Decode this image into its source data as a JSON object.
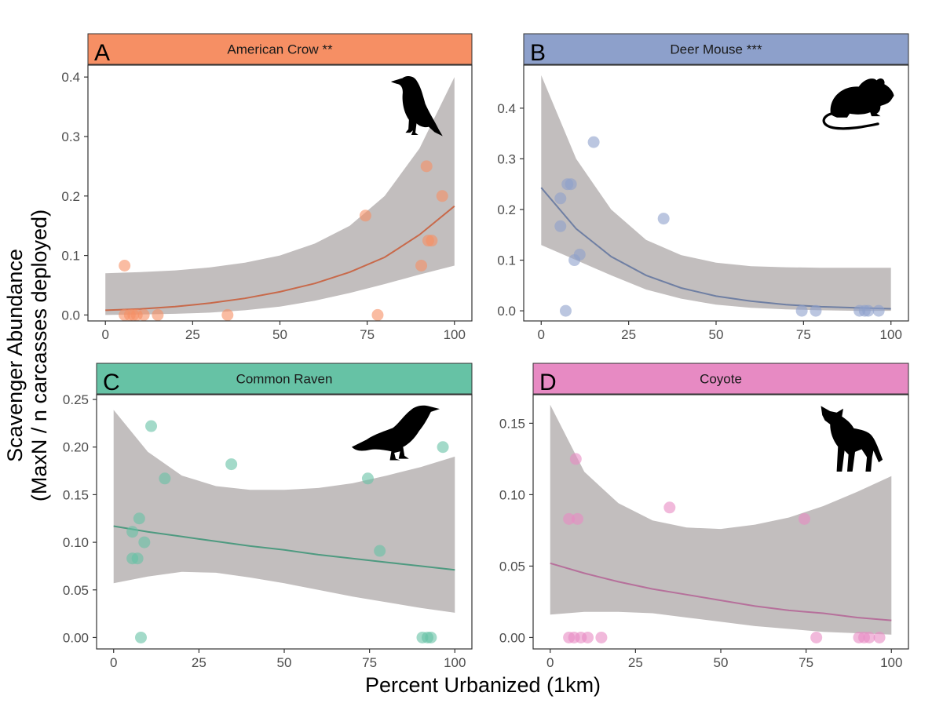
{
  "figure": {
    "ylabel_line1": "Scavenger Abundance",
    "ylabel_line2": "(MaxN / n carcasses deployed)",
    "xlabel": "Percent Urbanized (1km)"
  },
  "chart_data": [
    {
      "type": "scatter",
      "panel_letter": "A",
      "title": "American Crow **",
      "strip_color": "#f68f64",
      "point_color": "#f68f64",
      "line_color": "#c8694a",
      "ribbon_color": "#c2bebe",
      "xlim": [
        -5,
        105
      ],
      "ylim": [
        -0.01,
        0.42
      ],
      "x_ticks": [
        0,
        25,
        50,
        75,
        100
      ],
      "y_ticks": [
        0.0,
        0.1,
        0.2,
        0.3,
        0.4
      ],
      "y_tick_labels": [
        "0.0",
        "0.1",
        "0.2",
        "0.3",
        "0.4"
      ],
      "silhouette": "crow-icon",
      "points": [
        {
          "x": 5.5,
          "y": 0.083
        },
        {
          "x": 5.5,
          "y": 0.0
        },
        {
          "x": 7,
          "y": 0.0
        },
        {
          "x": 8,
          "y": 0.0
        },
        {
          "x": 9,
          "y": 0.0
        },
        {
          "x": 11,
          "y": 0.0
        },
        {
          "x": 15,
          "y": 0.0
        },
        {
          "x": 35,
          "y": 0.0
        },
        {
          "x": 74.5,
          "y": 0.167
        },
        {
          "x": 78,
          "y": 0.0
        },
        {
          "x": 90.5,
          "y": 0.083
        },
        {
          "x": 92,
          "y": 0.25
        },
        {
          "x": 92.5,
          "y": 0.125
        },
        {
          "x": 93.5,
          "y": 0.125
        },
        {
          "x": 96.5,
          "y": 0.2
        }
      ],
      "fit": [
        {
          "x": 0,
          "y": 0.008,
          "lo": 0.0,
          "hi": 0.07
        },
        {
          "x": 10,
          "y": 0.01,
          "lo": 0.001,
          "hi": 0.072
        },
        {
          "x": 20,
          "y": 0.014,
          "lo": 0.002,
          "hi": 0.075
        },
        {
          "x": 30,
          "y": 0.02,
          "lo": 0.004,
          "hi": 0.08
        },
        {
          "x": 40,
          "y": 0.028,
          "lo": 0.008,
          "hi": 0.088
        },
        {
          "x": 50,
          "y": 0.039,
          "lo": 0.014,
          "hi": 0.1
        },
        {
          "x": 60,
          "y": 0.053,
          "lo": 0.024,
          "hi": 0.12
        },
        {
          "x": 70,
          "y": 0.072,
          "lo": 0.037,
          "hi": 0.15
        },
        {
          "x": 80,
          "y": 0.097,
          "lo": 0.052,
          "hi": 0.2
        },
        {
          "x": 90,
          "y": 0.135,
          "lo": 0.068,
          "hi": 0.28
        },
        {
          "x": 100,
          "y": 0.183,
          "lo": 0.083,
          "hi": 0.4
        }
      ]
    },
    {
      "type": "scatter",
      "panel_letter": "B",
      "title": "Deer Mouse ***",
      "strip_color": "#8da0cb",
      "point_color": "#8da0cb",
      "line_color": "#6f7fa3",
      "ribbon_color": "#c2bebe",
      "xlim": [
        -5,
        105
      ],
      "ylim": [
        -0.02,
        0.485
      ],
      "x_ticks": [
        0,
        25,
        50,
        75,
        100
      ],
      "y_ticks": [
        0.0,
        0.1,
        0.2,
        0.3,
        0.4
      ],
      "y_tick_labels": [
        "0.0",
        "0.1",
        "0.2",
        "0.3",
        "0.4"
      ],
      "silhouette": "mouse-icon",
      "points": [
        {
          "x": 5.5,
          "y": 0.222
        },
        {
          "x": 5.5,
          "y": 0.167
        },
        {
          "x": 7,
          "y": 0.0
        },
        {
          "x": 7.5,
          "y": 0.25
        },
        {
          "x": 8.5,
          "y": 0.25
        },
        {
          "x": 9.5,
          "y": 0.1
        },
        {
          "x": 11,
          "y": 0.111
        },
        {
          "x": 15,
          "y": 0.333
        },
        {
          "x": 35,
          "y": 0.182
        },
        {
          "x": 74.5,
          "y": 0.0
        },
        {
          "x": 78.5,
          "y": 0.0
        },
        {
          "x": 91,
          "y": 0.0
        },
        {
          "x": 92.5,
          "y": 0.0
        },
        {
          "x": 93.5,
          "y": 0.0
        },
        {
          "x": 96.5,
          "y": 0.0
        }
      ],
      "fit": [
        {
          "x": 0,
          "y": 0.243,
          "lo": 0.13,
          "hi": 0.465
        },
        {
          "x": 10,
          "y": 0.162,
          "lo": 0.1,
          "hi": 0.3
        },
        {
          "x": 20,
          "y": 0.107,
          "lo": 0.07,
          "hi": 0.2
        },
        {
          "x": 30,
          "y": 0.07,
          "lo": 0.042,
          "hi": 0.14
        },
        {
          "x": 40,
          "y": 0.045,
          "lo": 0.024,
          "hi": 0.11
        },
        {
          "x": 50,
          "y": 0.029,
          "lo": 0.012,
          "hi": 0.095
        },
        {
          "x": 60,
          "y": 0.019,
          "lo": 0.006,
          "hi": 0.088
        },
        {
          "x": 70,
          "y": 0.012,
          "lo": 0.003,
          "hi": 0.086
        },
        {
          "x": 80,
          "y": 0.008,
          "lo": 0.001,
          "hi": 0.085
        },
        {
          "x": 90,
          "y": 0.006,
          "lo": 0.0,
          "hi": 0.085
        },
        {
          "x": 100,
          "y": 0.004,
          "lo": 0.0,
          "hi": 0.085
        }
      ]
    },
    {
      "type": "scatter",
      "panel_letter": "C",
      "title": "Common Raven",
      "strip_color": "#66c2a5",
      "point_color": "#66c2a5",
      "line_color": "#4e9a80",
      "ribbon_color": "#c2bebe",
      "xlim": [
        -5,
        105
      ],
      "ylim": [
        -0.012,
        0.255
      ],
      "x_ticks": [
        0,
        25,
        50,
        75,
        100
      ],
      "y_ticks": [
        0.0,
        0.05,
        0.1,
        0.15,
        0.2,
        0.25
      ],
      "y_tick_labels": [
        "0.00",
        "0.05",
        "0.10",
        "0.15",
        "0.20",
        "0.25"
      ],
      "silhouette": "raven-icon",
      "points": [
        {
          "x": 5.5,
          "y": 0.111
        },
        {
          "x": 5.5,
          "y": 0.083
        },
        {
          "x": 7,
          "y": 0.083
        },
        {
          "x": 7.5,
          "y": 0.125
        },
        {
          "x": 8,
          "y": 0.0
        },
        {
          "x": 9,
          "y": 0.1
        },
        {
          "x": 11,
          "y": 0.222
        },
        {
          "x": 15,
          "y": 0.167
        },
        {
          "x": 34.5,
          "y": 0.182
        },
        {
          "x": 74.5,
          "y": 0.167
        },
        {
          "x": 78,
          "y": 0.091
        },
        {
          "x": 90.5,
          "y": 0.0
        },
        {
          "x": 92,
          "y": 0.0
        },
        {
          "x": 93,
          "y": 0.0
        },
        {
          "x": 96.5,
          "y": 0.2
        }
      ],
      "fit": [
        {
          "x": 0,
          "y": 0.117,
          "lo": 0.057,
          "hi": 0.239
        },
        {
          "x": 10,
          "y": 0.111,
          "lo": 0.064,
          "hi": 0.195
        },
        {
          "x": 20,
          "y": 0.106,
          "lo": 0.069,
          "hi": 0.17
        },
        {
          "x": 30,
          "y": 0.101,
          "lo": 0.068,
          "hi": 0.159
        },
        {
          "x": 40,
          "y": 0.096,
          "lo": 0.063,
          "hi": 0.155
        },
        {
          "x": 50,
          "y": 0.092,
          "lo": 0.057,
          "hi": 0.155
        },
        {
          "x": 60,
          "y": 0.087,
          "lo": 0.05,
          "hi": 0.157
        },
        {
          "x": 70,
          "y": 0.083,
          "lo": 0.043,
          "hi": 0.162
        },
        {
          "x": 80,
          "y": 0.079,
          "lo": 0.037,
          "hi": 0.17
        },
        {
          "x": 90,
          "y": 0.075,
          "lo": 0.031,
          "hi": 0.179
        },
        {
          "x": 100,
          "y": 0.071,
          "lo": 0.026,
          "hi": 0.19
        }
      ]
    },
    {
      "type": "scatter",
      "panel_letter": "D",
      "title": "Coyote",
      "strip_color": "#e78ac3",
      "point_color": "#e78ac3",
      "line_color": "#b6709b",
      "ribbon_color": "#c2bebe",
      "xlim": [
        -5,
        105
      ],
      "ylim": [
        -0.008,
        0.17
      ],
      "x_ticks": [
        0,
        25,
        50,
        75,
        100
      ],
      "y_ticks": [
        0.0,
        0.05,
        0.1,
        0.15
      ],
      "y_tick_labels": [
        "0.00",
        "0.05",
        "0.10",
        "0.15"
      ],
      "silhouette": "coyote-icon",
      "points": [
        {
          "x": 5.5,
          "y": 0.083
        },
        {
          "x": 5.5,
          "y": 0.0
        },
        {
          "x": 7,
          "y": 0.0
        },
        {
          "x": 7.5,
          "y": 0.125
        },
        {
          "x": 8,
          "y": 0.083
        },
        {
          "x": 9,
          "y": 0.0
        },
        {
          "x": 11,
          "y": 0.0
        },
        {
          "x": 15,
          "y": 0.0
        },
        {
          "x": 35,
          "y": 0.091
        },
        {
          "x": 74.5,
          "y": 0.083
        },
        {
          "x": 78,
          "y": 0.0
        },
        {
          "x": 90.5,
          "y": 0.0
        },
        {
          "x": 92,
          "y": 0.0
        },
        {
          "x": 93.5,
          "y": 0.0
        },
        {
          "x": 96.5,
          "y": 0.0
        }
      ],
      "fit": [
        {
          "x": 0,
          "y": 0.052,
          "lo": 0.016,
          "hi": 0.163
        },
        {
          "x": 10,
          "y": 0.045,
          "lo": 0.018,
          "hi": 0.116
        },
        {
          "x": 20,
          "y": 0.039,
          "lo": 0.018,
          "hi": 0.094
        },
        {
          "x": 30,
          "y": 0.034,
          "lo": 0.017,
          "hi": 0.082
        },
        {
          "x": 40,
          "y": 0.03,
          "lo": 0.014,
          "hi": 0.077
        },
        {
          "x": 50,
          "y": 0.026,
          "lo": 0.011,
          "hi": 0.076
        },
        {
          "x": 60,
          "y": 0.022,
          "lo": 0.008,
          "hi": 0.079
        },
        {
          "x": 70,
          "y": 0.019,
          "lo": 0.006,
          "hi": 0.084
        },
        {
          "x": 80,
          "y": 0.017,
          "lo": 0.004,
          "hi": 0.092
        },
        {
          "x": 90,
          "y": 0.014,
          "lo": 0.003,
          "hi": 0.102
        },
        {
          "x": 100,
          "y": 0.012,
          "lo": 0.002,
          "hi": 0.113
        }
      ]
    }
  ]
}
